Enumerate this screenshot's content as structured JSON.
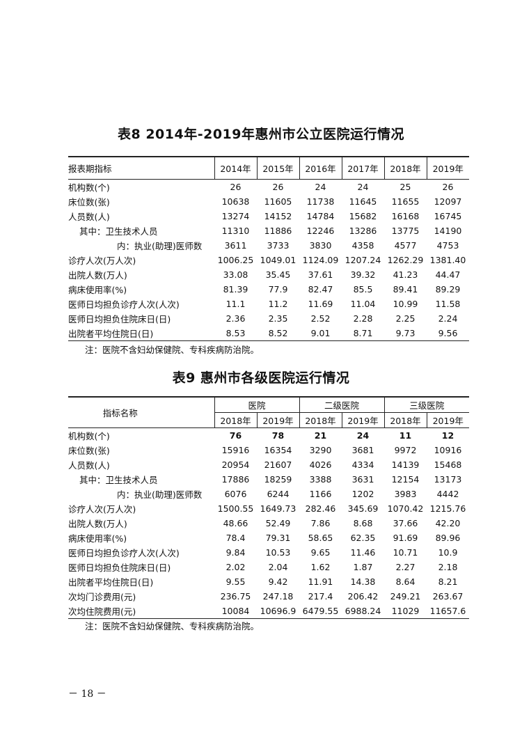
{
  "table8": {
    "title": "表8  2014年-2019年惠州市公立医院运行情况",
    "header": [
      "报表期指标",
      "2014年",
      "2015年",
      "2016年",
      "2017年",
      "2018年",
      "2019年"
    ],
    "rows": [
      {
        "label": "机构数(个)",
        "indent": 0,
        "values": [
          "26",
          "26",
          "24",
          "24",
          "25",
          "26"
        ]
      },
      {
        "label": "床位数(张)",
        "indent": 0,
        "values": [
          "10638",
          "11605",
          "11738",
          "11645",
          "11655",
          "12097"
        ]
      },
      {
        "label": "人员数(人)",
        "indent": 0,
        "values": [
          "13274",
          "14152",
          "14784",
          "15682",
          "16168",
          "16745"
        ]
      },
      {
        "label": "其中：卫生技术人员",
        "indent": 1,
        "values": [
          "11310",
          "11886",
          "12246",
          "13286",
          "13775",
          "14190"
        ]
      },
      {
        "label": "内：执业(助理)医师数",
        "indent": 2,
        "values": [
          "3611",
          "3733",
          "3830",
          "4358",
          "4577",
          "4753"
        ]
      },
      {
        "label": "诊疗人次(万人次)",
        "indent": 0,
        "values": [
          "1006.25",
          "1049.01",
          "1124.09",
          "1207.24",
          "1262.29",
          "1381.40"
        ]
      },
      {
        "label": "出院人数(万人)",
        "indent": 0,
        "values": [
          "33.08",
          "35.45",
          "37.61",
          "39.32",
          "41.23",
          "44.47"
        ]
      },
      {
        "label": "病床使用率(%)",
        "indent": 0,
        "values": [
          "81.39",
          "77.9",
          "82.47",
          "85.5",
          "89.41",
          "89.29"
        ]
      },
      {
        "label": "医师日均担负诊疗人次(人次)",
        "indent": 0,
        "values": [
          "11.1",
          "11.2",
          "11.69",
          "11.04",
          "10.99",
          "11.58"
        ]
      },
      {
        "label": "医师日均担负住院床日(日)",
        "indent": 0,
        "values": [
          "2.36",
          "2.35",
          "2.52",
          "2.28",
          "2.25",
          "2.24"
        ]
      },
      {
        "label": "出院者平均住院日(日)",
        "indent": 0,
        "values": [
          "8.53",
          "8.52",
          "9.01",
          "8.71",
          "9.73",
          "9.56"
        ]
      }
    ],
    "note": "注：医院不含妇幼保健院、专科疾病防治院。"
  },
  "table9": {
    "title": "表9   惠州市各级医院运行情况",
    "corner": "指标名称",
    "groups": [
      "医院",
      "二级医院",
      "三级医院"
    ],
    "years": [
      "2018年",
      "2019年",
      "2018年",
      "2019年",
      "2018年",
      "2019年"
    ],
    "rows": [
      {
        "label": "机构数(个)",
        "indent": 0,
        "bold": true,
        "values": [
          "76",
          "78",
          "21",
          "24",
          "11",
          "12"
        ]
      },
      {
        "label": "床位数(张)",
        "indent": 0,
        "values": [
          "15916",
          "16354",
          "3290",
          "3681",
          "9972",
          "10916"
        ]
      },
      {
        "label": "人员数(人)",
        "indent": 0,
        "values": [
          "20954",
          "21607",
          "4026",
          "4334",
          "14139",
          "15468"
        ]
      },
      {
        "label": "其中：卫生技术人员",
        "indent": 1,
        "values": [
          "17886",
          "18259",
          "3388",
          "3631",
          "12154",
          "13173"
        ]
      },
      {
        "label": "内：执业(助理)医师数",
        "indent": 2,
        "values": [
          "6076",
          "6244",
          "1166",
          "1202",
          "3983",
          "4442"
        ]
      },
      {
        "label": "诊疗人次(万人次)",
        "indent": 0,
        "values": [
          "1500.55",
          "1649.73",
          "282.46",
          "345.69",
          "1070.42",
          "1215.76"
        ]
      },
      {
        "label": "出院人数(万人)",
        "indent": 0,
        "values": [
          "48.66",
          "52.49",
          "7.86",
          "8.68",
          "37.66",
          "42.20"
        ]
      },
      {
        "label": "病床使用率(%)",
        "indent": 0,
        "values": [
          "78.4",
          "79.31",
          "58.65",
          "62.35",
          "91.69",
          "89.96"
        ]
      },
      {
        "label": "医师日均担负诊疗人次(人次)",
        "indent": 0,
        "values": [
          "9.84",
          "10.53",
          "9.65",
          "11.46",
          "10.71",
          "10.9"
        ]
      },
      {
        "label": "医师日均担负住院床日(日)",
        "indent": 0,
        "values": [
          "2.02",
          "2.04",
          "1.62",
          "1.87",
          "2.27",
          "2.18"
        ]
      },
      {
        "label": "出院者平均住院日(日)",
        "indent": 0,
        "values": [
          "9.55",
          "9.42",
          "11.91",
          "14.38",
          "8.64",
          "8.21"
        ]
      },
      {
        "label": "次均门诊费用(元)",
        "indent": 0,
        "values": [
          "236.75",
          "247.18",
          "217.4",
          "206.42",
          "249.21",
          "263.67"
        ]
      },
      {
        "label": "次均住院费用(元)",
        "indent": 0,
        "values": [
          "10084",
          "10696.9",
          "6479.55",
          "6988.24",
          "11029",
          "11657.6"
        ]
      }
    ],
    "note": "注：医院不含妇幼保健院、专科疾病防治院。"
  },
  "page_number": "－ 18 －"
}
